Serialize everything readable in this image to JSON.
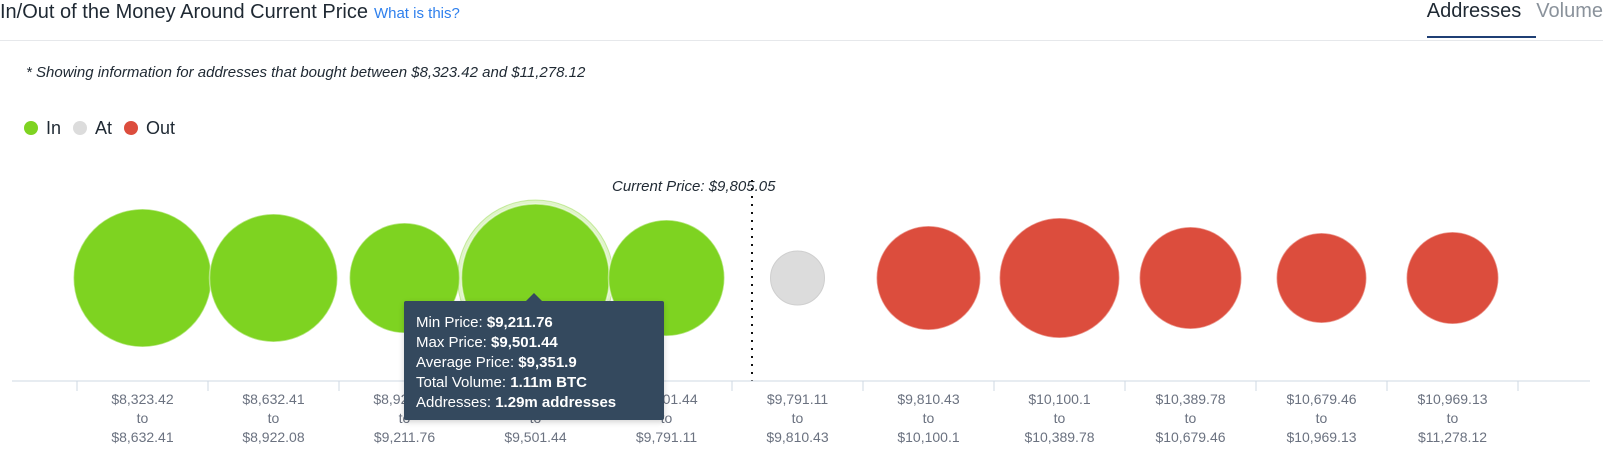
{
  "header": {
    "title": "In/Out of the Money Around Current Price",
    "help_link": "What is this?",
    "tabs": [
      {
        "label": "Addresses",
        "active": true
      },
      {
        "label": "Volume",
        "active": false
      }
    ]
  },
  "note": "* Showing information for addresses that bought between $8,323.42 and $11,278.12",
  "legend": [
    {
      "label": "In",
      "color": "#7ed321"
    },
    {
      "label": "At",
      "color": "#dcdcdc"
    },
    {
      "label": "Out",
      "color": "#dc4d3d"
    }
  ],
  "current_price_label": "Current Price: $9,805.05",
  "tooltip": {
    "lines": [
      {
        "label": "Min Price:",
        "value": "$9,211.76"
      },
      {
        "label": "Max Price:",
        "value": "$9,501.44"
      },
      {
        "label": "Average Price:",
        "value": "$9,351.9"
      },
      {
        "label": "Total Volume:",
        "value": "1.11m BTC"
      },
      {
        "label": "Addresses:",
        "value": "1.29m addresses"
      }
    ]
  },
  "chart_data": {
    "type": "scatter",
    "title": "In/Out of the Money Around Current Price",
    "current_price": 9805.05,
    "categories": [
      {
        "from": "$8,323.42",
        "to_word": "to",
        "to": "$8,632.41",
        "status": "In",
        "size": 69
      },
      {
        "from": "$8,632.41",
        "to_word": "to",
        "to": "$8,922.08",
        "status": "In",
        "size": 64
      },
      {
        "from": "$8,922.08",
        "to_word": "to",
        "to": "$9,211.76",
        "status": "In",
        "size": 55
      },
      {
        "from": "$9,211.76",
        "to_word": "to",
        "to": "$9,501.44",
        "status": "In",
        "size": 74
      },
      {
        "from": "$9,501.44",
        "to_word": "to",
        "to": "$9,791.11",
        "status": "In",
        "size": 58
      },
      {
        "from": "$9,791.11",
        "to_word": "to",
        "to": "$9,810.43",
        "status": "At",
        "size": 27
      },
      {
        "from": "$9,810.43",
        "to_word": "to",
        "to": "$10,100.1",
        "status": "Out",
        "size": 52
      },
      {
        "from": "$10,100.1",
        "to_word": "to",
        "to": "$10,389.78",
        "status": "Out",
        "size": 60
      },
      {
        "from": "$10,389.78",
        "to_word": "to",
        "to": "$10,679.46",
        "status": "Out",
        "size": 51
      },
      {
        "from": "$10,679.46",
        "to_word": "to",
        "to": "$10,969.13",
        "status": "Out",
        "size": 45
      },
      {
        "from": "$10,969.13",
        "to_word": "to",
        "to": "$11,278.12",
        "status": "Out",
        "size": 46
      }
    ],
    "colors": {
      "In": "#7ed321",
      "At": "#dcdcdc",
      "Out": "#dc4d3d"
    },
    "highlight_index": 3
  }
}
